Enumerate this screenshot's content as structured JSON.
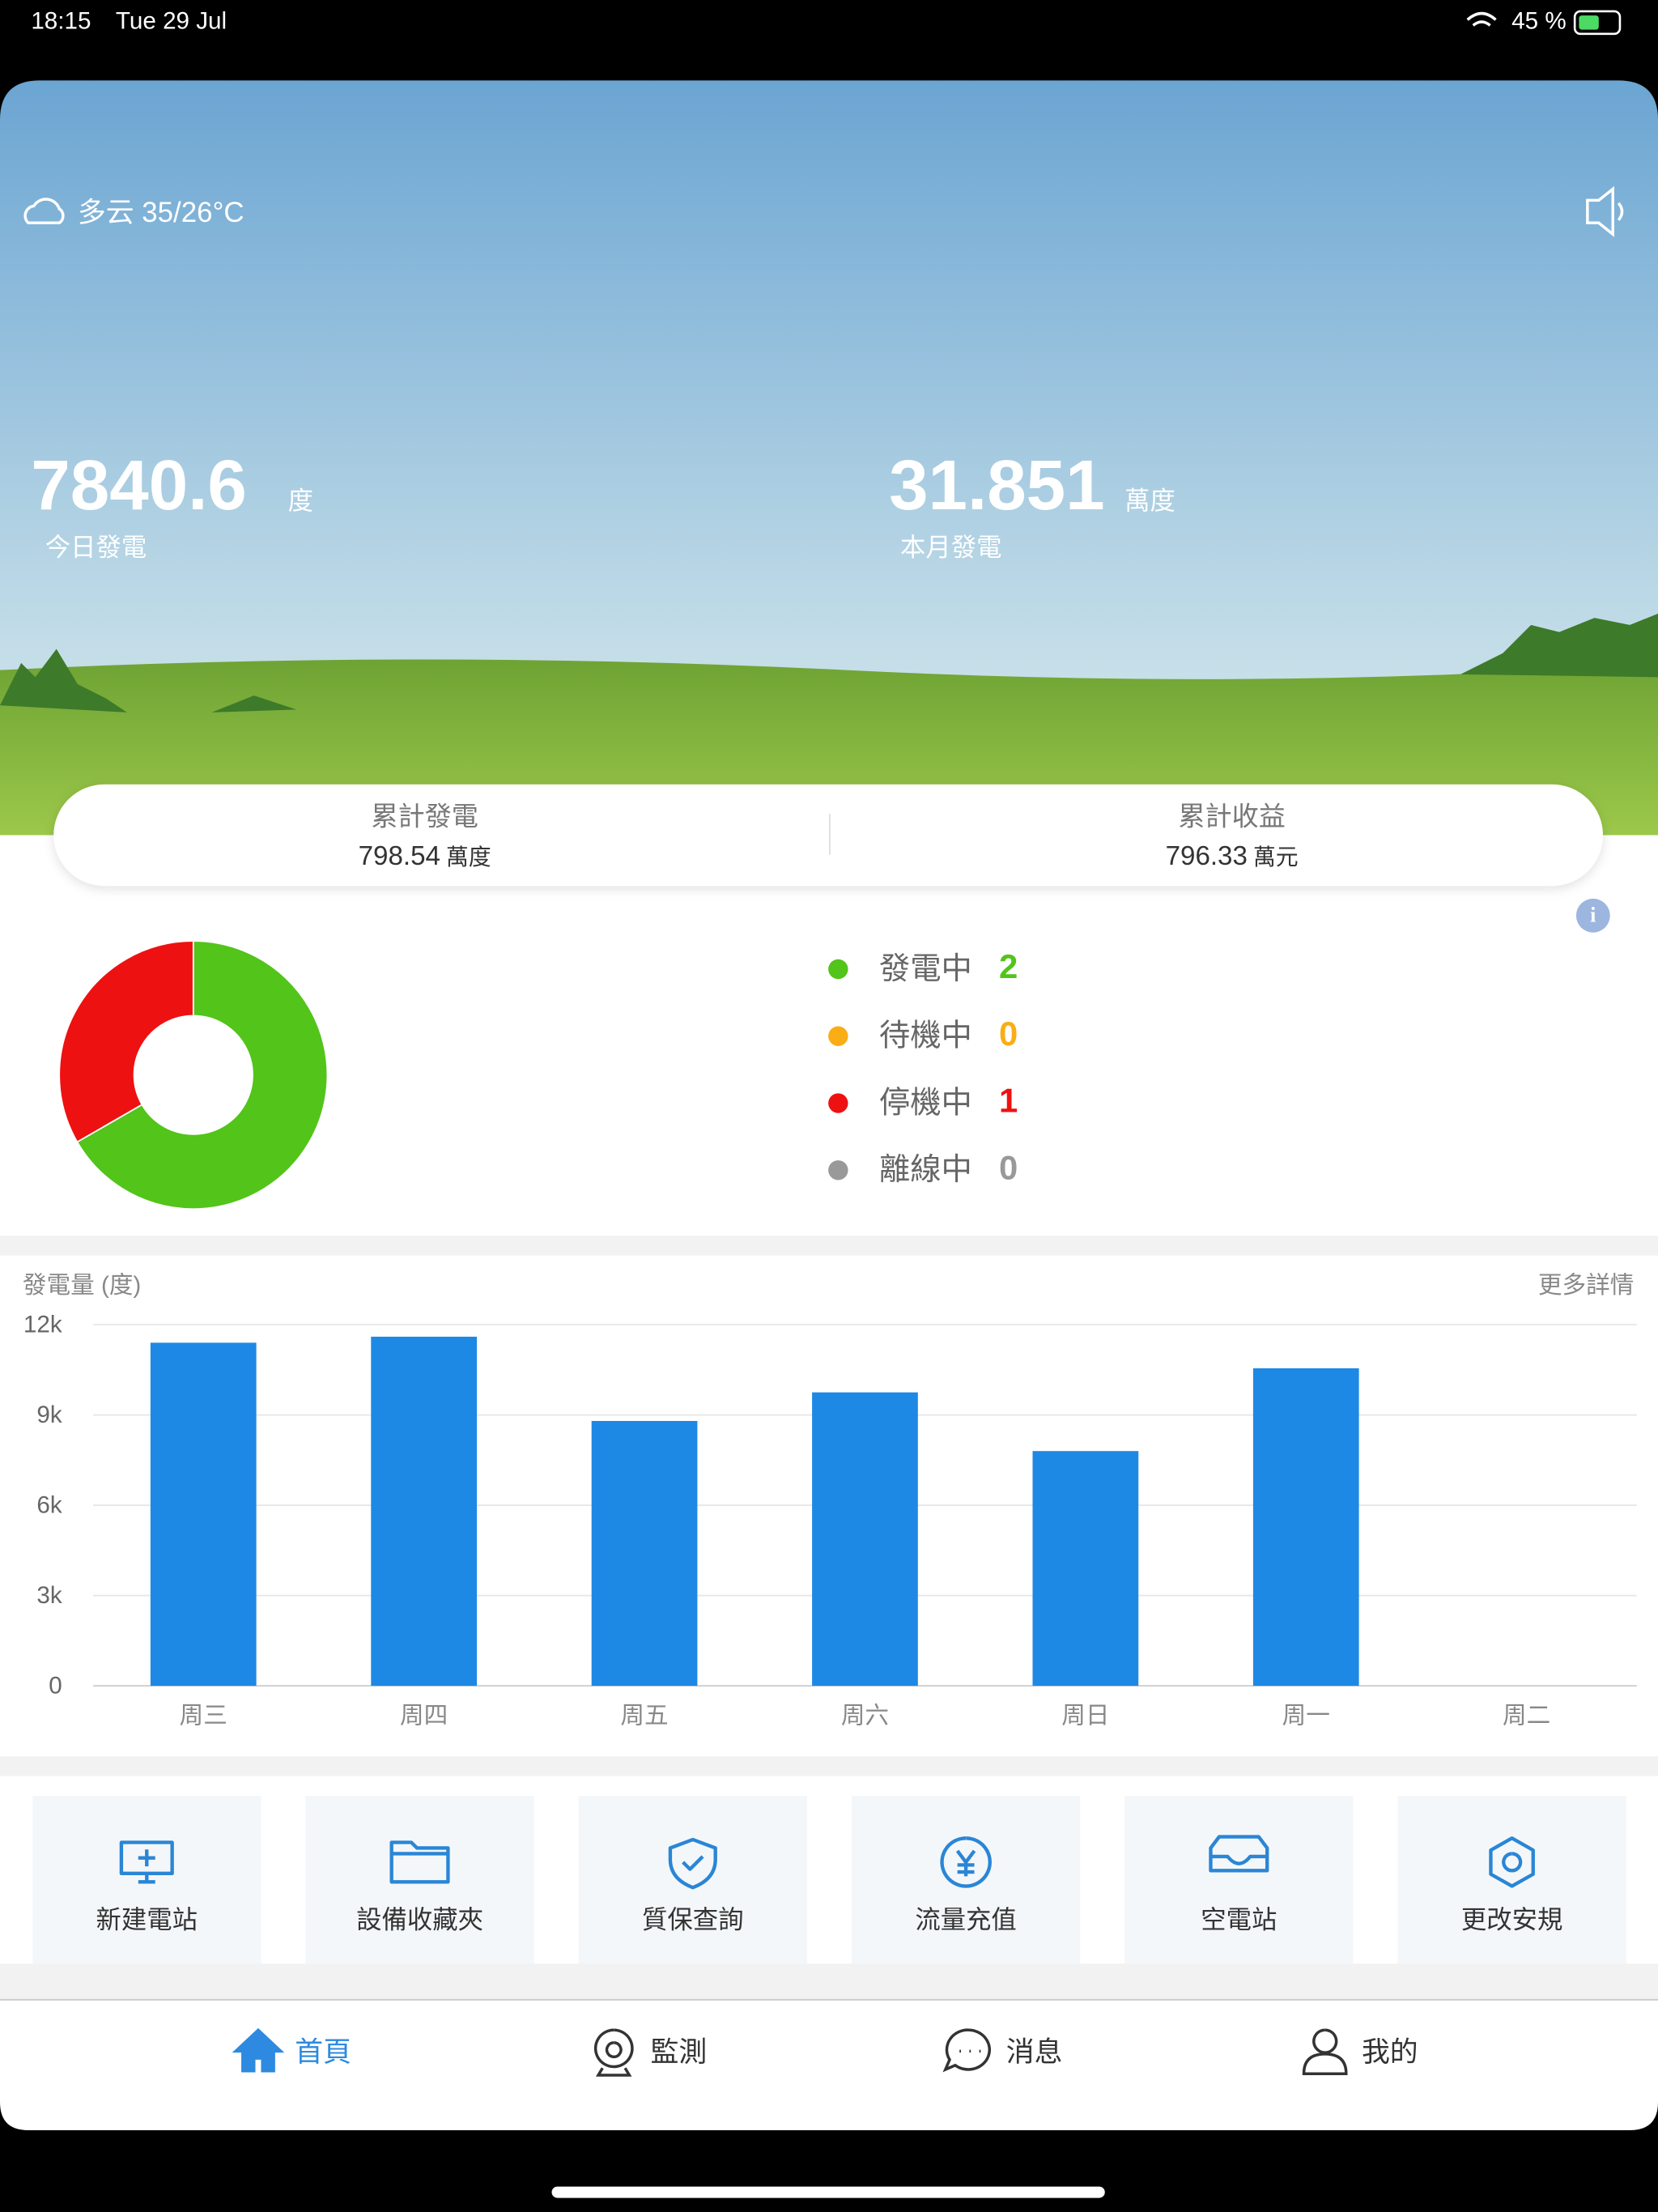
{
  "status_bar": {
    "time": "18:15",
    "date": "Tue 29 Jul",
    "battery": "45 %"
  },
  "weather": "多云 35/26°C",
  "today": {
    "value": "7840.6",
    "unit": "度",
    "label": "今日發電"
  },
  "month": {
    "value": "31.851",
    "unit": "萬度",
    "label": "本月發電"
  },
  "totals": [
    {
      "label": "累計發電",
      "value": "798.54",
      "unit": "萬度"
    },
    {
      "label": "累計收益",
      "value": "796.33",
      "unit": "萬元"
    }
  ],
  "chart_data": [
    {
      "type": "pie",
      "donut": true,
      "categories": [
        "發電中",
        "待機中",
        "停機中",
        "離線中"
      ],
      "values": [
        2,
        0,
        1,
        0
      ],
      "colors": [
        "#52c41a",
        "#faad14",
        "#ee1111",
        "#999999"
      ]
    },
    {
      "type": "bar",
      "title": "發電量 (度)",
      "link": "更多詳情",
      "categories": [
        "周三",
        "周四",
        "周五",
        "周六",
        "周日",
        "周一",
        "周二"
      ],
      "values": [
        11400,
        11600,
        8800,
        9750,
        7800,
        10550,
        null
      ],
      "color": "#1e88e5",
      "ylim": [
        0,
        12000
      ],
      "yticks": [
        0,
        {
          "value": 3000,
          "label": "3k"
        },
        {
          "value": 6000,
          "label": "6k"
        },
        {
          "value": 9000,
          "label": "9k"
        },
        {
          "value": 12000,
          "label": "12k"
        }
      ],
      "grid": true
    }
  ],
  "menu": [
    "新建電站",
    "設備收藏夾",
    "質保查詢",
    "流量充值",
    "空電站",
    "更改安規"
  ],
  "tabs": [
    "首頁",
    "監測",
    "消息",
    "我的"
  ]
}
